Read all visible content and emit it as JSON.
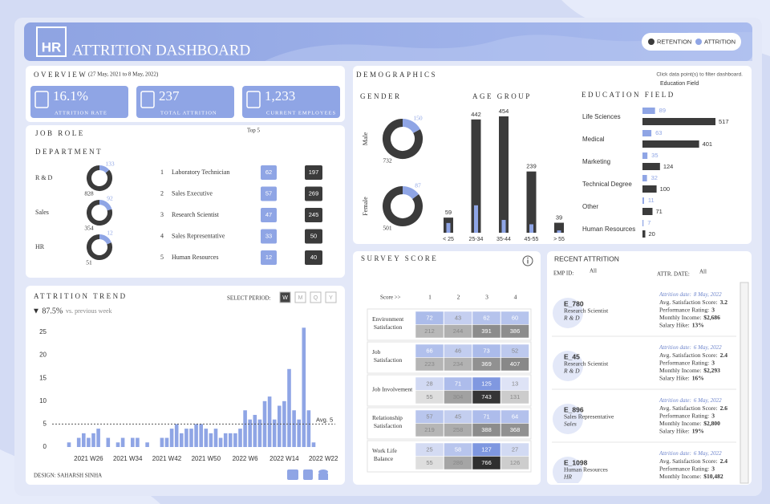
{
  "header": {
    "logo": "HR",
    "title": "ATTRITION DASHBOARD"
  },
  "overview": {
    "title": "OVERVIEW",
    "period": "(27 May, 2021 to 8 May, 2022)",
    "kpis": [
      {
        "value": "16.1%",
        "label": "ATTRITION RATE"
      },
      {
        "value": "237",
        "label": "TOTAL ATTRITION"
      },
      {
        "value": "1,233",
        "label": "CURRENT EMPLOYEES"
      }
    ]
  },
  "job_role": {
    "title": "JOB ROLE",
    "top": "Top 5",
    "department_title": "DEPARTMENT",
    "roles": [
      {
        "rank": 1,
        "name": "Laboratory Technician",
        "attrition": 62,
        "retention": 197
      },
      {
        "rank": 2,
        "name": "Sales Executive",
        "attrition": 57,
        "retention": 269
      },
      {
        "rank": 3,
        "name": "Research Scientist",
        "attrition": 47,
        "retention": 245
      },
      {
        "rank": 4,
        "name": "Sales Representative",
        "attrition": 33,
        "retention": 50
      },
      {
        "rank": 5,
        "name": "Human Resources",
        "attrition": 12,
        "retention": 40
      }
    ]
  },
  "demographics": {
    "title": "DEMOGRAPHICS",
    "hint": "Click data point(s) to filter dashboard.",
    "filter": "Education Field"
  },
  "survey": {
    "title": "SURVEY SCORE",
    "score_label": "Score >>",
    "scores": [
      1,
      2,
      3,
      4
    ],
    "rows": [
      {
        "name": "Environment Satisfaction",
        "attrition": [
          72,
          43,
          62,
          60
        ],
        "retention": [
          212,
          244,
          391,
          386
        ]
      },
      {
        "name": "Job Satisfaction",
        "attrition": [
          66,
          46,
          73,
          52
        ],
        "retention": [
          223,
          234,
          369,
          407
        ]
      },
      {
        "name": "Job Involvement",
        "attrition": [
          28,
          71,
          125,
          13
        ],
        "retention": [
          55,
          304,
          743,
          131
        ]
      },
      {
        "name": "Relationship Satisfaction",
        "attrition": [
          57,
          45,
          71,
          64
        ],
        "retention": [
          219,
          258,
          388,
          368
        ]
      },
      {
        "name": "Work Life Balance",
        "attrition": [
          25,
          58,
          127,
          27
        ],
        "retention": [
          55,
          286,
          766,
          126
        ]
      }
    ]
  },
  "recent": {
    "title": "RECENT ATTRITION",
    "emp_label": "EMP ID:",
    "emp_value": "All",
    "date_filter_label": "ATTR. DATE:",
    "date_filter_value": "All",
    "date_label": "Attrition date:",
    "fields": [
      "Avg. Satisfaction Score:",
      "Performance Rating:",
      "Monthly Income:",
      "Salary Hike:"
    ],
    "entries": [
      {
        "id": "E_780",
        "role": "Research Scientist",
        "dept": "R & D",
        "date": "8 May, 2022",
        "stats": [
          "3.2",
          "3",
          "$2,686",
          "13%"
        ]
      },
      {
        "id": "E_45",
        "role": "Research Scientist",
        "dept": "R & D",
        "date": "6 May, 2022",
        "stats": [
          "2.4",
          "3",
          "$2,293",
          "16%"
        ]
      },
      {
        "id": "E_896",
        "role": "Sales Representative",
        "dept": "Sales",
        "date": "6 May, 2022",
        "stats": [
          "2.6",
          "3",
          "$2,800",
          "19%"
        ]
      },
      {
        "id": "E_1098",
        "role": "Human Resources",
        "dept": "HR",
        "date": "6 May, 2022",
        "stats": [
          "2.4",
          "3",
          "$10,482"
        ]
      }
    ]
  },
  "footer": {
    "design": "DESIGN: SAHARSH SINHA"
  },
  "chart_data": [
    {
      "type": "bar",
      "title": "ATTRITION TREND",
      "period_label": "SELECT PERIOD:",
      "periods": [
        "W",
        "M",
        "Q",
        "Y"
      ],
      "selected_period": "W",
      "change": "▼ 87.5%",
      "change_note": "vs. previous week",
      "categories": [
        null,
        null,
        null,
        null,
        "2021 W26",
        null,
        null,
        null,
        null,
        null,
        null,
        null,
        "2021 W34",
        null,
        null,
        null,
        null,
        null,
        null,
        null,
        "2021 W42",
        null,
        null,
        null,
        null,
        null,
        null,
        null,
        "2021 W50",
        null,
        null,
        null,
        null,
        null,
        null,
        null,
        "2022 W6",
        null,
        null,
        null,
        null,
        null,
        null,
        null,
        "2022 W14",
        null,
        null,
        null,
        null,
        null,
        null,
        null,
        "2022 W22"
      ],
      "values": [
        1,
        0,
        2,
        3,
        2,
        3,
        4,
        0,
        2,
        0,
        1,
        2,
        0,
        2,
        2,
        0,
        1,
        0,
        0,
        2,
        2,
        4,
        5,
        3,
        4,
        4,
        5,
        5,
        4,
        3,
        4,
        2,
        3,
        3,
        3,
        4,
        8,
        6,
        7,
        6,
        10,
        11,
        6,
        9,
        10,
        17,
        8,
        6,
        26,
        8,
        1,
        null,
        null
      ],
      "color": "#8fa5e5",
      "ylim": [
        0,
        27
      ],
      "yticks": [
        0,
        5,
        10,
        15,
        20,
        25
      ],
      "grid": false,
      "annotations": [
        {
          "value": 5,
          "label": "Avg. 5"
        }
      ]
    },
    {
      "type": "donut",
      "title": "GENDER",
      "categories": [
        "Male",
        "Female"
      ],
      "series": [
        {
          "name": "RETENTION",
          "color": "#3b3b3b",
          "values": [
            732,
            501
          ]
        },
        {
          "name": "ATTRITION",
          "color": "#8fa5e5",
          "values": [
            150,
            87
          ]
        }
      ]
    },
    {
      "type": "bar",
      "title": "AGE GROUP",
      "categories": [
        "< 25",
        "25-34",
        "35-44",
        "45-55",
        "> 55"
      ],
      "series": [
        {
          "name": "RETENTION",
          "color": "#3b3b3b",
          "values": [
            59,
            442,
            454,
            239,
            39
          ]
        },
        {
          "name": "ATTRITION",
          "color": "#8fa5e5",
          "values": [
            38,
            107,
            50,
            33,
            9
          ]
        }
      ]
    },
    {
      "type": "hbar",
      "title": "EDUCATION FIELD",
      "categories": [
        "Life Sciences",
        "Medical",
        "Marketing",
        "Technical Degree",
        "Other",
        "Human Resources"
      ],
      "series": [
        {
          "name": "RETENTION",
          "color": "#3b3b3b",
          "values": [
            517,
            401,
            124,
            100,
            71,
            20
          ]
        },
        {
          "name": "ATTRITION",
          "color": "#8fa5e5",
          "values": [
            89,
            63,
            35,
            32,
            11,
            7
          ]
        }
      ]
    },
    {
      "type": "donut",
      "title": "DEPARTMENT",
      "categories": [
        "R & D",
        "Sales",
        "HR"
      ],
      "series": [
        {
          "name": "RETENTION",
          "color": "#3b3b3b",
          "values": [
            828,
            354,
            51
          ]
        },
        {
          "name": "ATTRITION",
          "color": "#8fa5e5",
          "values": [
            133,
            92,
            12
          ]
        }
      ]
    }
  ]
}
